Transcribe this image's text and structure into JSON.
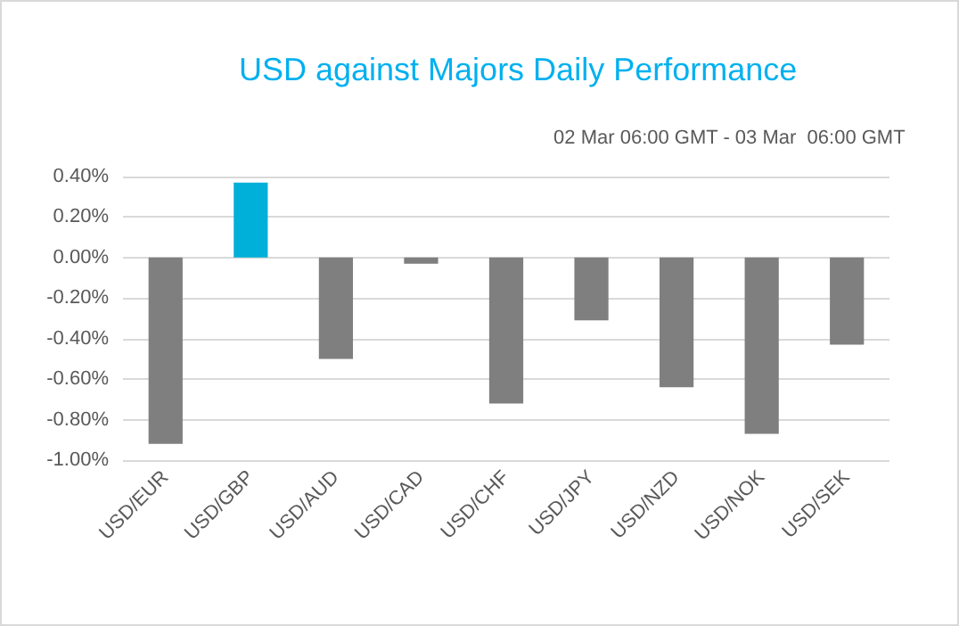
{
  "chart_data": {
    "type": "bar",
    "title": "USD against Majors Daily Performance",
    "subtitle": "02 Mar 06:00 GMT - 03 Mar  06:00 GMT",
    "categories": [
      "USD/EUR",
      "USD/GBP",
      "USD/AUD",
      "USD/CAD",
      "USD/CHF",
      "USD/JPY",
      "USD/NZD",
      "USD/NOK",
      "USD/SEK"
    ],
    "values": [
      -0.92,
      0.37,
      -0.5,
      -0.03,
      -0.72,
      -0.31,
      -0.64,
      -0.87,
      -0.43
    ],
    "colors": [
      "#7f7f7f",
      "#00b0d8",
      "#7f7f7f",
      "#7f7f7f",
      "#7f7f7f",
      "#7f7f7f",
      "#7f7f7f",
      "#7f7f7f",
      "#7f7f7f"
    ],
    "ylim": [
      -1,
      0.4
    ],
    "yticks": [
      {
        "value": -1,
        "label": "-1.00%"
      },
      {
        "value": -0.8,
        "label": "-0.80%"
      },
      {
        "value": -0.6,
        "label": "-0.60%"
      },
      {
        "value": -0.4,
        "label": "-0.40%"
      },
      {
        "value": -0.2,
        "label": "-0.20%"
      },
      {
        "value": 0,
        "label": "0.00%"
      },
      {
        "value": 0.2,
        "label": "0.20%"
      },
      {
        "value": 0.4,
        "label": "0.40%"
      }
    ],
    "grid": true
  }
}
